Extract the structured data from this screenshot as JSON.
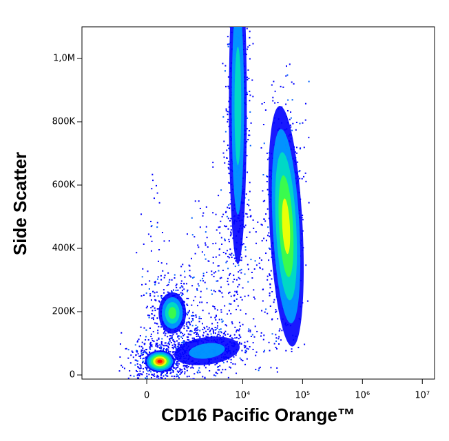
{
  "chart_data": {
    "type": "scatter",
    "xlabel": "CD16 Pacific Orange™",
    "ylabel": "Side Scatter",
    "xscale": "biexponential",
    "xlim": [
      -3000,
      16000000
    ],
    "ylim": [
      -13000,
      1100000
    ],
    "xticks": [
      {
        "value": 0,
        "label": "0"
      },
      {
        "value": 10000,
        "label": "10⁴"
      },
      {
        "value": 100000,
        "label": "10⁵"
      },
      {
        "value": 1000000,
        "label": "10⁶"
      },
      {
        "value": 10000000,
        "label": "10⁷"
      }
    ],
    "yticks": [
      {
        "value": 0,
        "label": "0"
      },
      {
        "value": 200000,
        "label": "200K"
      },
      {
        "value": 400000,
        "label": "400K"
      },
      {
        "value": 600000,
        "label": "600K"
      },
      {
        "value": 800000,
        "label": "800K"
      },
      {
        "value": 1000000,
        "label": "1,0M"
      }
    ],
    "x": [
      263,
      575,
      8300,
      53000,
      2500
    ],
    "y": [
      43000,
      196000,
      850000,
      470000,
      76000
    ],
    "colors": [
      "#ff0000",
      "#40ff40",
      "#00e0c0",
      "#ffff00",
      "#00a0ff"
    ]
  }
}
